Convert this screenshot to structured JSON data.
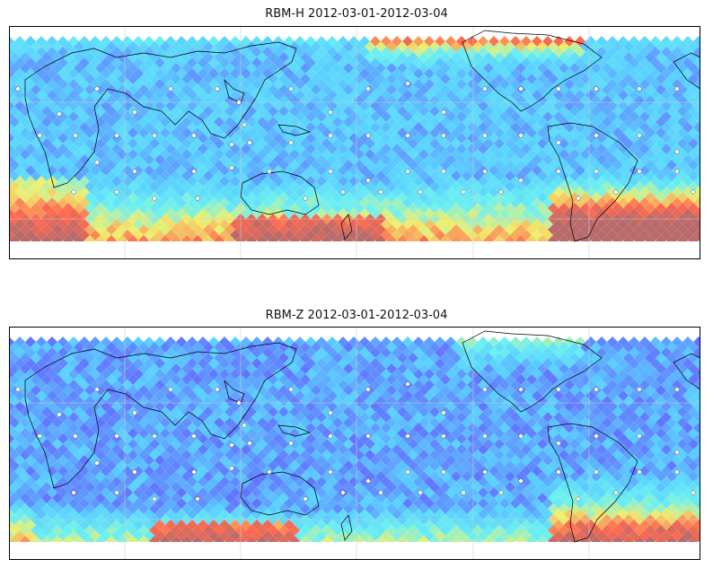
{
  "maps": [
    {
      "id": "rbm-h",
      "title": "RBM-H 2012-03-01-2012-03-04",
      "field": "rbm-h"
    },
    {
      "id": "rbm-z",
      "title": "RBM-Z 2012-03-01-2012-03-04",
      "field": "rbm-z"
    }
  ],
  "colors": {
    "low": "#6464ff",
    "mid_low": "#5ad2ff",
    "mid": "#6cf0f0",
    "mid_high": "#f0f06c",
    "high": "#ff6a50",
    "extreme": "#b96a6a",
    "coastline": "#000000",
    "gridline": "#cccccc",
    "frame": "#000000"
  }
}
